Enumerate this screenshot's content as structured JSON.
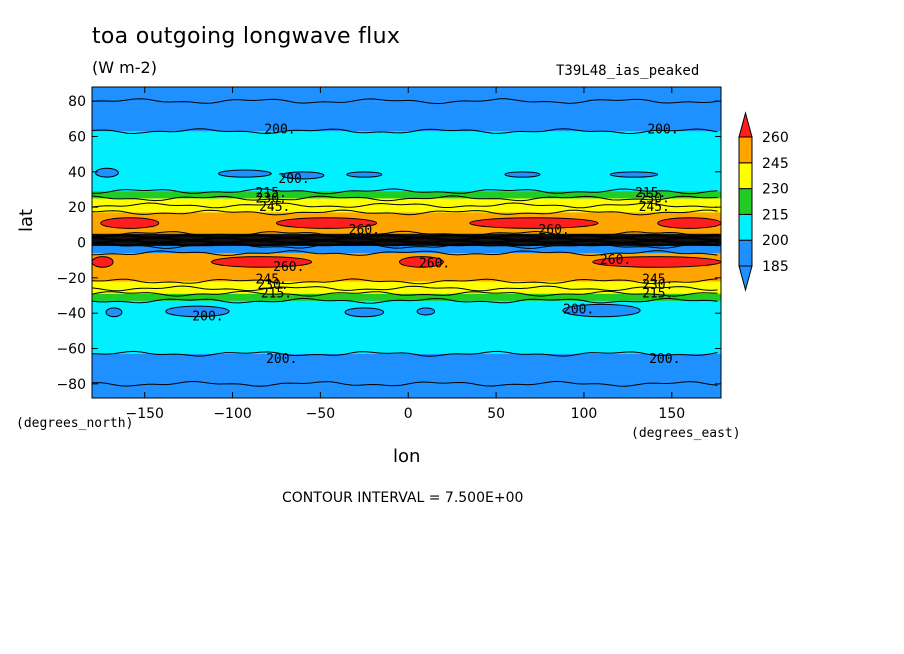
{
  "chart_data": {
    "type": "heatmap",
    "title": "toa outgoing longwave flux",
    "units": "(W m-2)",
    "experiment": "T39L48_ias_peaked",
    "xlabel": "lon",
    "ylabel": "lat",
    "xunits": "(degrees_east)",
    "yunits": "(degrees_north)",
    "xlim": [
      -180,
      178
    ],
    "ylim": [
      -88,
      88
    ],
    "xticks": [
      -150,
      -100,
      -50,
      0,
      50,
      100,
      150
    ],
    "yticks": [
      -80,
      -60,
      -40,
      -20,
      0,
      20,
      40,
      60,
      80
    ],
    "contour_interval_label": "CONTOUR INTERVAL = 7.500E+00",
    "colorbar": {
      "levels": [
        185,
        200,
        215,
        230,
        245,
        260
      ],
      "colors": [
        "#1e90ff",
        "#00f0ff",
        "#22cc22",
        "#ffff00",
        "#ffa500",
        "#ff1e1e"
      ],
      "below_color": "#1e90ff",
      "above_color": "#ff1e1e"
    },
    "zonal_bands": [
      {
        "lat_min": -88,
        "lat_max": -80,
        "value": 192
      },
      {
        "lat_min": -80,
        "lat_max": -63,
        "value": 196
      },
      {
        "lat_min": -63,
        "lat_max": -33,
        "value": 205
      },
      {
        "lat_min": -33,
        "lat_max": -29,
        "value": 218
      },
      {
        "lat_min": -29,
        "lat_max": -26,
        "value": 233
      },
      {
        "lat_min": -26,
        "lat_max": -22,
        "value": 240
      },
      {
        "lat_min": -22,
        "lat_max": -6,
        "value": 250
      },
      {
        "lat_min": -6,
        "lat_max": -2,
        "value": 192
      },
      {
        "lat_min": -2,
        "lat_max": 5,
        "value": 170
      },
      {
        "lat_min": 5,
        "lat_max": 17,
        "value": 250
      },
      {
        "lat_min": 17,
        "lat_max": 21,
        "value": 240
      },
      {
        "lat_min": 21,
        "lat_max": 25,
        "value": 233
      },
      {
        "lat_min": 25,
        "lat_max": 29,
        "value": 218
      },
      {
        "lat_min": 29,
        "lat_max": 63,
        "value": 205
      },
      {
        "lat_min": 63,
        "lat_max": 80,
        "value": 196
      },
      {
        "lat_min": 80,
        "lat_max": 88,
        "value": 192
      }
    ],
    "warm_patches": [
      {
        "lon_min": -175,
        "lon_max": -142,
        "lat_min": 8,
        "lat_max": 14,
        "value": 262
      },
      {
        "lon_min": -75,
        "lon_max": -18,
        "lat_min": 8,
        "lat_max": 14,
        "value": 262
      },
      {
        "lon_min": 35,
        "lon_max": 108,
        "lat_min": 8,
        "lat_max": 14,
        "value": 262
      },
      {
        "lon_min": 142,
        "lon_max": 178,
        "lat_min": 8,
        "lat_max": 14,
        "value": 262
      },
      {
        "lon_min": -180,
        "lon_max": -168,
        "lat_min": -14,
        "lat_max": -8,
        "value": 262
      },
      {
        "lon_min": -112,
        "lon_max": -55,
        "lat_min": -14,
        "lat_max": -8,
        "value": 262
      },
      {
        "lon_min": -5,
        "lon_max": 20,
        "lat_min": -14,
        "lat_max": -8,
        "value": 262
      },
      {
        "lon_min": 105,
        "lon_max": 178,
        "lat_min": -14,
        "lat_max": -8,
        "value": 262
      }
    ],
    "cold_patches": [
      {
        "lon_min": -178,
        "lon_max": -165,
        "lat_min": 37,
        "lat_max": 42,
        "value": 197
      },
      {
        "lon_min": -108,
        "lon_max": -78,
        "lat_min": 37,
        "lat_max": 41,
        "value": 197
      },
      {
        "lon_min": -72,
        "lon_max": -48,
        "lat_min": 36,
        "lat_max": 40,
        "value": 197
      },
      {
        "lon_min": -35,
        "lon_max": -15,
        "lat_min": 37,
        "lat_max": 40,
        "value": 197
      },
      {
        "lon_min": 55,
        "lon_max": 75,
        "lat_min": 37,
        "lat_max": 40,
        "value": 197
      },
      {
        "lon_min": 115,
        "lon_max": 142,
        "lat_min": 37,
        "lat_max": 40,
        "value": 197
      },
      {
        "lon_min": -172,
        "lon_max": -163,
        "lat_min": -42,
        "lat_max": -37,
        "value": 197
      },
      {
        "lon_min": -138,
        "lon_max": -102,
        "lat_min": -42,
        "lat_max": -36,
        "value": 197
      },
      {
        "lon_min": -36,
        "lon_max": -14,
        "lat_min": -42,
        "lat_max": -37,
        "value": 197
      },
      {
        "lon_min": 5,
        "lon_max": 15,
        "lat_min": -41,
        "lat_max": -37,
        "value": 197
      },
      {
        "lon_min": 88,
        "lon_max": 132,
        "lat_min": -42,
        "lat_max": -35,
        "value": 197
      }
    ],
    "contour_labels": [
      {
        "text": "200.",
        "lon": -73,
        "lat": 64
      },
      {
        "text": "200.",
        "lon": 145,
        "lat": 64
      },
      {
        "text": "200.",
        "lon": -65,
        "lat": 36
      },
      {
        "text": "215.",
        "lon": -78,
        "lat": 28
      },
      {
        "text": "230.",
        "lon": -78,
        "lat": 25
      },
      {
        "text": "245.",
        "lon": -76,
        "lat": 20
      },
      {
        "text": "215.",
        "lon": 138,
        "lat": 28
      },
      {
        "text": "230.",
        "lon": 140,
        "lat": 25
      },
      {
        "text": "245.",
        "lon": 140,
        "lat": 20
      },
      {
        "text": "260.",
        "lon": -25,
        "lat": 7
      },
      {
        "text": "260.",
        "lon": 83,
        "lat": 7
      },
      {
        "text": "260.",
        "lon": -68,
        "lat": -14
      },
      {
        "text": "260.",
        "lon": 15,
        "lat": -12
      },
      {
        "text": "260.",
        "lon": 118,
        "lat": -10
      },
      {
        "text": "245.",
        "lon": -78,
        "lat": -21
      },
      {
        "text": "230.",
        "lon": -77,
        "lat": -24
      },
      {
        "text": "215.",
        "lon": -75,
        "lat": -29
      },
      {
        "text": "245.",
        "lon": 142,
        "lat": -21
      },
      {
        "text": "230.",
        "lon": 142,
        "lat": -24
      },
      {
        "text": "215.",
        "lon": 142,
        "lat": -29
      },
      {
        "text": "200.",
        "lon": -114,
        "lat": -42
      },
      {
        "text": "200.",
        "lon": 97,
        "lat": -38
      },
      {
        "text": "200.",
        "lon": -72,
        "lat": -66
      },
      {
        "text": "200.",
        "lon": 146,
        "lat": -66
      }
    ]
  }
}
